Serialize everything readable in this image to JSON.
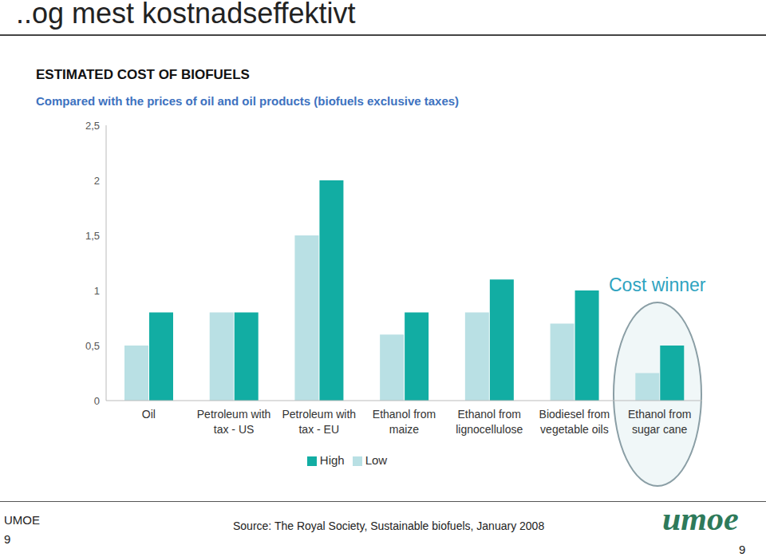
{
  "slide": {
    "title": "..og mest kostnadseffektivt",
    "footer_left": "UMOE",
    "page": "9",
    "source": "Source: The Royal Society, Sustainable biofuels, January 2008",
    "logo": "umoe"
  },
  "chart_data": {
    "type": "bar",
    "title": "ESTIMATED COST OF BIOFUELS",
    "subtitle": "Compared with the prices of oil and oil products (biofuels exclusive taxes)",
    "annotation": "Cost winner",
    "categories": [
      "Oil",
      "Petroleum with tax - US",
      "Petroleum with tax - EU",
      "Ethanol from maize",
      "Ethanol from lignocellulose",
      "Biodiesel from vegetable oils",
      "Ethanol from sugar cane"
    ],
    "series": [
      {
        "name": "Low",
        "color": "#b9e0e4",
        "values": [
          0.5,
          0.8,
          1.5,
          0.6,
          0.8,
          0.7,
          0.25
        ]
      },
      {
        "name": "High",
        "color": "#12ada3",
        "values": [
          0.8,
          0.8,
          2.0,
          0.8,
          1.1,
          1.0,
          0.5
        ]
      }
    ],
    "ylim": [
      0,
      2.5
    ],
    "yticks": [
      0,
      {
        "value": 0.5,
        "label": "0,5"
      },
      1,
      {
        "value": 1.5,
        "label": "1,5"
      },
      2,
      {
        "value": 2.5,
        "label": "2,5"
      }
    ],
    "grid": false,
    "legend": "bottom"
  }
}
